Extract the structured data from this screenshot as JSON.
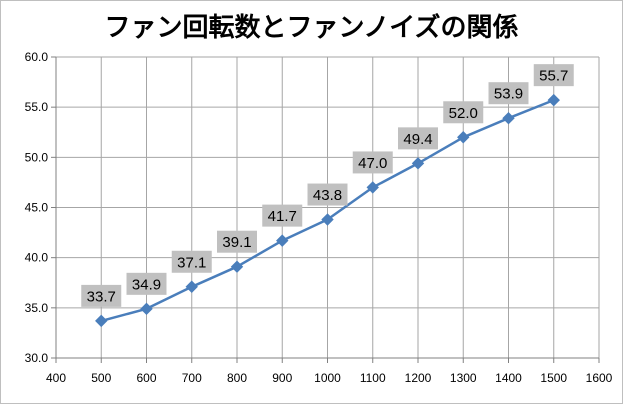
{
  "chart_data": {
    "type": "line",
    "title": "ファン回転数とファンノイズの関係",
    "xlabel": "",
    "ylabel": "",
    "x": [
      500,
      600,
      700,
      800,
      900,
      1000,
      1100,
      1200,
      1300,
      1400,
      1500
    ],
    "series": [
      {
        "values": [
          33.7,
          34.9,
          37.1,
          39.1,
          41.7,
          43.8,
          47.0,
          49.4,
          52.0,
          53.9,
          55.7
        ],
        "labels": [
          "33.7",
          "34.9",
          "37.1",
          "39.1",
          "41.7",
          "43.8",
          "47.0",
          "49.4",
          "52.0",
          "53.9",
          "55.7"
        ]
      }
    ],
    "xlim": [
      400,
      1600
    ],
    "ylim": [
      30,
      60
    ],
    "x_ticks": [
      "400",
      "500",
      "600",
      "700",
      "800",
      "900",
      "1000",
      "1100",
      "1200",
      "1300",
      "1400",
      "1500",
      "1600"
    ],
    "y_ticks": [
      "30.0",
      "35.0",
      "40.0",
      "45.0",
      "50.0",
      "55.0",
      "60.0"
    ],
    "grid": true,
    "legend": "none",
    "colors": {
      "line": "#4a7ebb",
      "marker": "#4a7ebb",
      "grid": "#a6a6a6",
      "label_box": "#c0c0c0"
    }
  }
}
